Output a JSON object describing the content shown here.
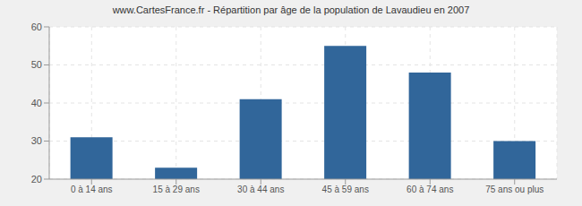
{
  "chart_data": {
    "type": "bar",
    "title": "www.CartesFrance.fr - Répartition par âge de la population de Lavaudieu en 2007",
    "categories": [
      "0 à 14 ans",
      "15 à 29 ans",
      "30 à 44 ans",
      "45 à 59 ans",
      "60 à 74 ans",
      "75 ans ou plus"
    ],
    "values": [
      31,
      23,
      41,
      55,
      48,
      30
    ],
    "color": "#31669a",
    "ylim": [
      20,
      60
    ],
    "yticks": [
      20,
      30,
      40,
      50,
      60
    ],
    "grid": true
  }
}
